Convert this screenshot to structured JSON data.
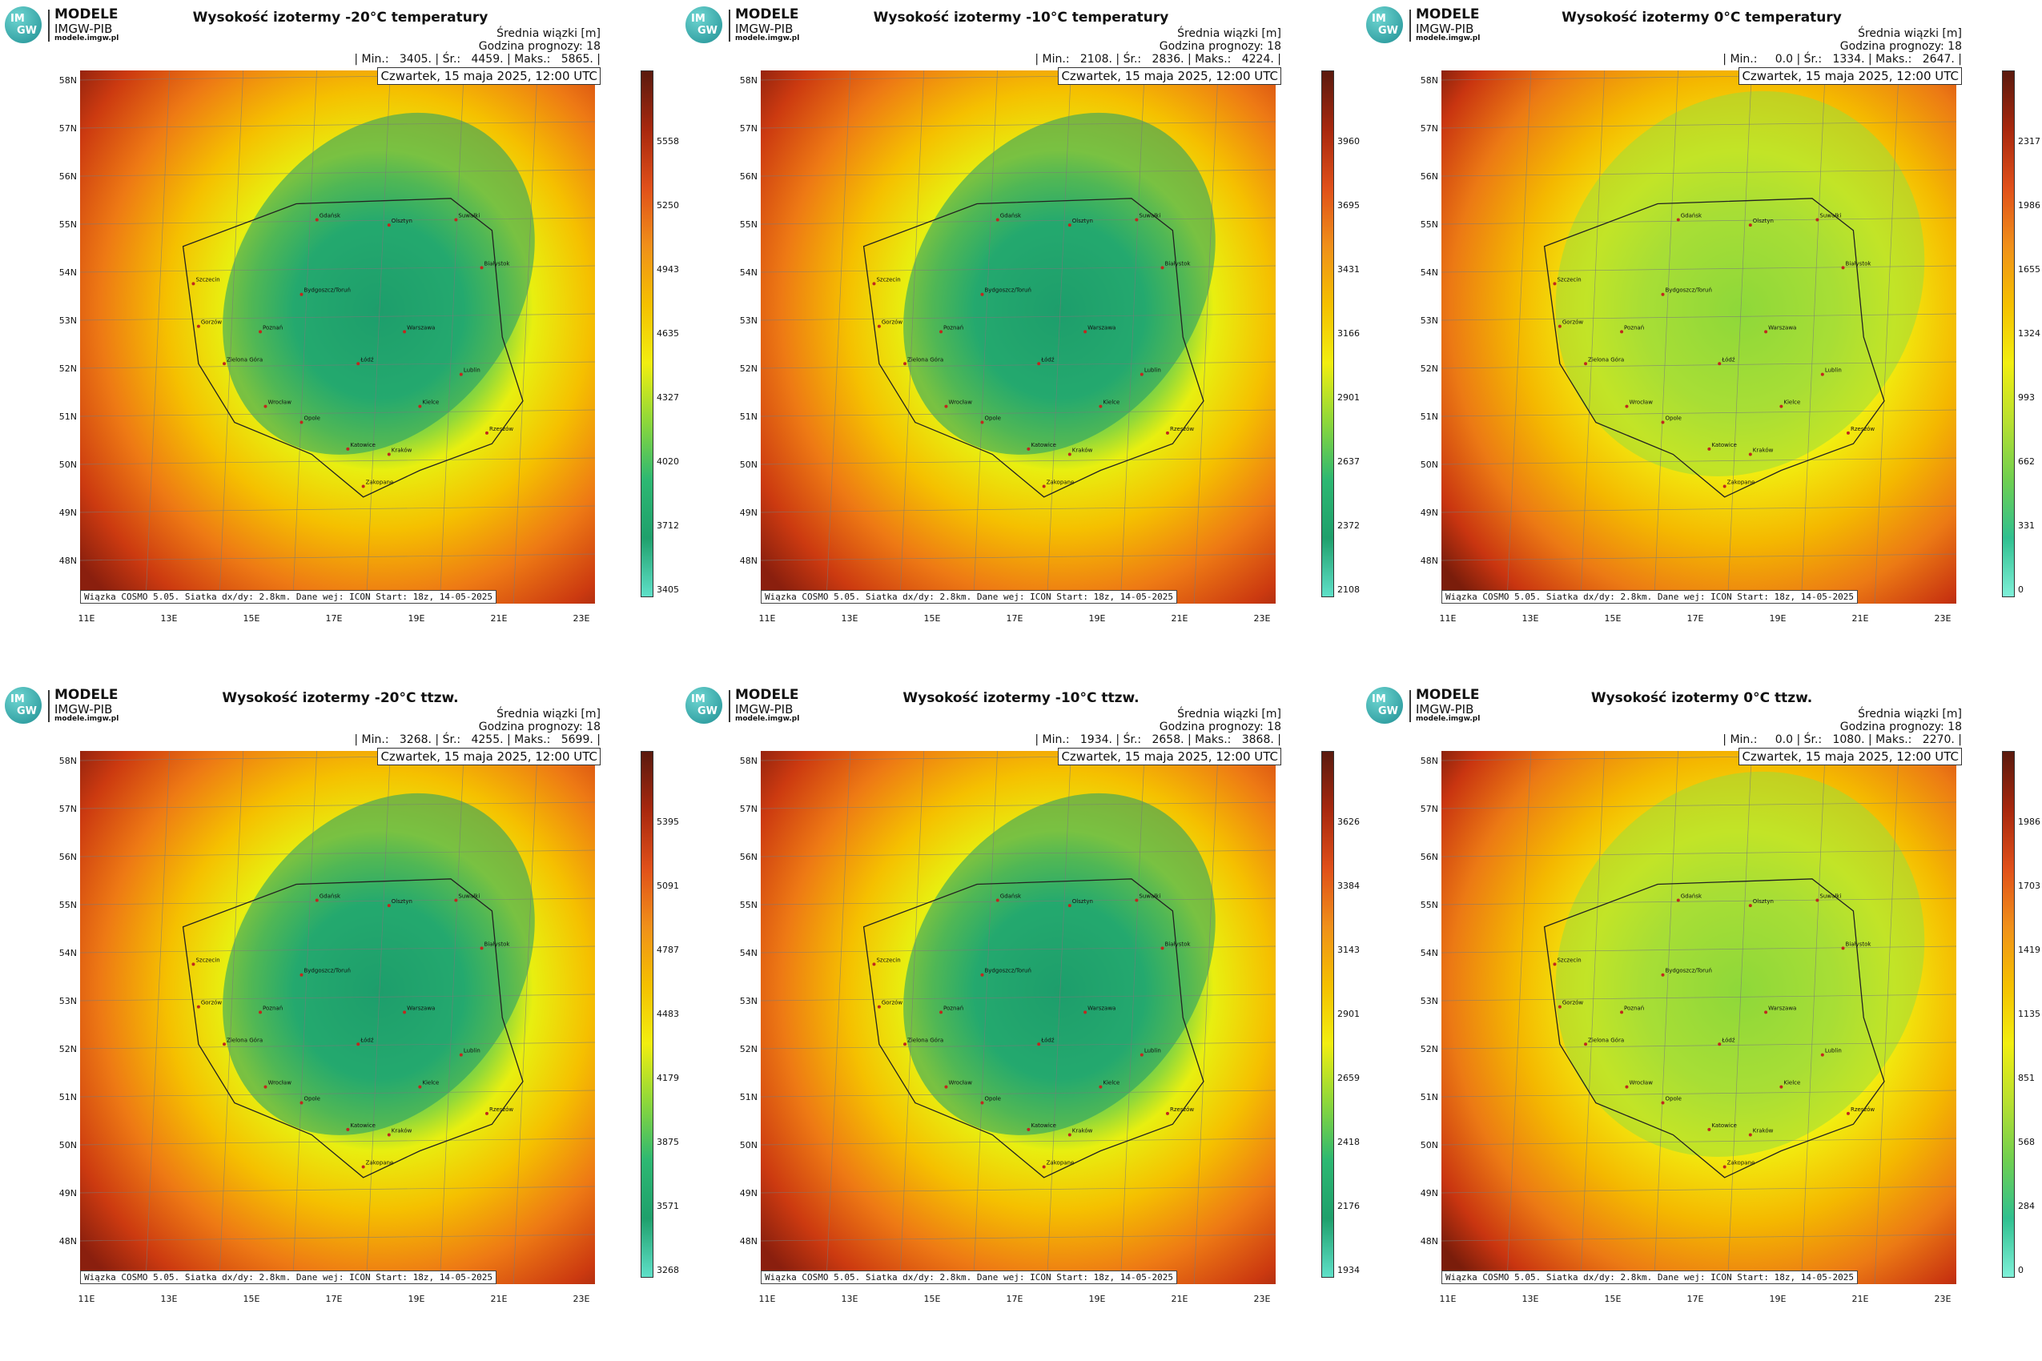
{
  "logo": {
    "line1": "MODELE",
    "line2": "IMGW-PIB",
    "line3": "modele.imgw.pl",
    "mark_top": "IM",
    "mark_bottom": "GW"
  },
  "common": {
    "info_line1": "Średnia wiązki [m]",
    "info_line2": "Godzina prognozy: 18",
    "date": "Czwartek, 15 maja 2025, 12:00 UTC",
    "footer": "Wiązka COSMO 5.05. Siatka dx/dy: 2.8km. Dane wej: ICON Start: 18z, 14-05-2025",
    "lat_labels": [
      "58N",
      "57N",
      "56N",
      "55N",
      "54N",
      "53N",
      "52N",
      "51N",
      "50N",
      "49N",
      "48N"
    ],
    "lon_labels": [
      "11E",
      "13E",
      "15E",
      "17E",
      "19E",
      "21E",
      "23E"
    ]
  },
  "panels": [
    {
      "title": "Wysokość izotermy -20°C temperatury",
      "stats": "| Min.:   3405. | Śr.:   4459. | Maks.:   5865. |",
      "scale": [
        "5558",
        "5250",
        "4943",
        "4635",
        "4327",
        "4020",
        "3712",
        "3405"
      ],
      "core": "deep"
    },
    {
      "title": "Wysokość izotermy -10°C temperatury",
      "stats": "| Min.:   2108. | Śr.:   2836. | Maks.:   4224. |",
      "scale": [
        "3960",
        "3695",
        "3431",
        "3166",
        "2901",
        "2637",
        "2372",
        "2108"
      ],
      "core": "deep"
    },
    {
      "title": "Wysokość izotermy 0°C temperatury",
      "stats": "| Min.:     0.0 | Śr.:   1334. | Maks.:   2647. |",
      "scale": [
        "2317",
        "1986",
        "1655",
        "1324",
        "993",
        "662",
        "331",
        "0"
      ],
      "core": "light"
    },
    {
      "title": "Wysokość izotermy -20°C ttzw.",
      "stats": "| Min.:   3268. | Śr.:   4255. | Maks.:   5699. |",
      "scale": [
        "5395",
        "5091",
        "4787",
        "4483",
        "4179",
        "3875",
        "3571",
        "3268"
      ],
      "core": "deep"
    },
    {
      "title": "Wysokość izotermy -10°C ttzw.",
      "stats": "| Min.:   1934. | Śr.:   2658. | Maks.:   3868. |",
      "scale": [
        "3626",
        "3384",
        "3143",
        "2901",
        "2659",
        "2418",
        "2176",
        "1934"
      ],
      "core": "deep"
    },
    {
      "title": "Wysokość izotermy 0°C ttzw.",
      "stats": "| Min.:     0.0 | Śr.:   1080. | Maks.:   2270. |",
      "scale": [
        "1986",
        "1703",
        "1419",
        "1135",
        "851",
        "568",
        "284",
        "0"
      ],
      "core": "light"
    }
  ],
  "cities": [
    "Gdańsk",
    "Olsztyn",
    "Suwałki",
    "Szczecin",
    "Białystok",
    "Bydgoszcz/Toruń",
    "Gorzów",
    "Warszawa",
    "Poznań",
    "Zielona Góra",
    "Łódź",
    "Lublin",
    "Wrocław",
    "Kielce",
    "Opole",
    "Rzeszów",
    "Katowice",
    "Kraków",
    "Zakopane"
  ]
}
